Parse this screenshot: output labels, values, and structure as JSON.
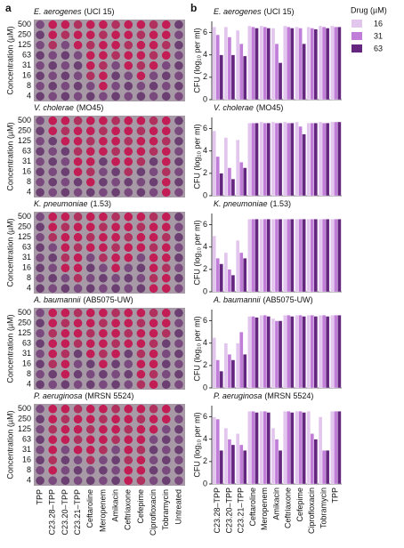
{
  "panel_a": {
    "label": "a",
    "y_label": "Concentration (µM)",
    "concentrations": [
      500,
      250,
      125,
      63,
      31,
      16,
      8,
      4
    ],
    "columns": [
      "TPP",
      "C23.28–TPP",
      "C23.20–TPP",
      "C23.21–TPP",
      "Ceftaroline",
      "Meropenem",
      "Amikacin",
      "Ceftriaxone",
      "Cefepime",
      "Ciprofloxacin",
      "Tobramycin",
      "Untreated"
    ]
  },
  "panel_b": {
    "label": "b",
    "legend_title": "Drug (µM)"
  },
  "chart_data": [
    {
      "type": "bar",
      "organism": "E. aerogenes",
      "strain": "(UCI 15)",
      "y_label": "CFU (log₁₀ per ml)",
      "ylim": [
        0,
        7
      ],
      "yticks": [
        0,
        2,
        4,
        6
      ],
      "series": [
        {
          "name": "16",
          "color": "#e2c6ee",
          "values": [
            6.5,
            6.5,
            6.2,
            6.6,
            6.6,
            6.4,
            6.6,
            6.5,
            6.5,
            6.6,
            6.6
          ]
        },
        {
          "name": "31",
          "color": "#c07ed8",
          "values": [
            5.8,
            5.6,
            5.0,
            6.5,
            6.5,
            5.0,
            6.5,
            6.4,
            6.4,
            6.5,
            6.5
          ]
        },
        {
          "name": "63",
          "color": "#64267f",
          "values": [
            4.0,
            4.0,
            3.9,
            6.4,
            6.4,
            3.3,
            6.4,
            5.0,
            6.3,
            6.4,
            6.5
          ]
        }
      ]
    },
    {
      "type": "bar",
      "organism": "V. cholerae",
      "strain": "(MO45)",
      "y_label": "CFU (log₁₀ per ml)",
      "ylim": [
        0,
        7
      ],
      "yticks": [
        0,
        2,
        4,
        6
      ],
      "series": [
        {
          "name": "16",
          "color": "#e2c6ee",
          "values": [
            5.8,
            5.2,
            5.0,
            6.5,
            6.6,
            6.6,
            6.6,
            6.6,
            6.5,
            6.6,
            6.6
          ]
        },
        {
          "name": "31",
          "color": "#c07ed8",
          "values": [
            3.5,
            2.5,
            3.0,
            6.5,
            6.5,
            6.5,
            6.5,
            6.2,
            6.5,
            6.5,
            6.6
          ]
        },
        {
          "name": "63",
          "color": "#64267f",
          "values": [
            2.0,
            1.5,
            2.5,
            6.5,
            6.5,
            6.5,
            6.5,
            5.5,
            6.5,
            6.5,
            6.6
          ]
        }
      ]
    },
    {
      "type": "bar",
      "organism": "K. pneumoniae",
      "strain": "(1.53)",
      "y_label": "CFU (log₁₀ per ml)",
      "ylim": [
        0,
        7
      ],
      "yticks": [
        0,
        2,
        4,
        6
      ],
      "series": [
        {
          "name": "16",
          "color": "#e2c6ee",
          "values": [
            5.0,
            3.5,
            4.6,
            6.5,
            6.5,
            6.5,
            6.5,
            6.5,
            6.5,
            6.5,
            6.5
          ]
        },
        {
          "name": "31",
          "color": "#c07ed8",
          "values": [
            3.0,
            2.0,
            3.5,
            6.5,
            6.5,
            6.5,
            6.5,
            6.5,
            6.5,
            6.5,
            6.5
          ]
        },
        {
          "name": "63",
          "color": "#64267f",
          "values": [
            2.5,
            1.5,
            3.0,
            6.5,
            6.5,
            6.5,
            6.5,
            6.5,
            6.5,
            6.5,
            6.5
          ]
        }
      ]
    },
    {
      "type": "bar",
      "organism": "A. baumannii",
      "strain": "(AB5075-UW)",
      "y_label": "CFU (log₁₀ per ml)",
      "ylim": [
        0,
        7
      ],
      "yticks": [
        0,
        2,
        4,
        6
      ],
      "series": [
        {
          "name": "16",
          "color": "#e2c6ee",
          "values": [
            4.5,
            4.0,
            4.0,
            6.4,
            6.5,
            6.2,
            6.5,
            6.5,
            6.5,
            6.5,
            6.5
          ]
        },
        {
          "name": "31",
          "color": "#c07ed8",
          "values": [
            2.5,
            3.0,
            5.0,
            6.4,
            6.5,
            6.0,
            6.5,
            6.5,
            6.5,
            6.5,
            6.5
          ]
        },
        {
          "name": "63",
          "color": "#64267f",
          "values": [
            1.5,
            2.5,
            3.0,
            6.3,
            6.4,
            6.0,
            6.4,
            6.4,
            6.4,
            6.4,
            6.5
          ]
        }
      ]
    },
    {
      "type": "bar",
      "organism": "P. aeruginosa",
      "strain": "(MRSN 5524)",
      "y_label": "CFU (log₁₀ per ml)",
      "ylim": [
        0,
        7
      ],
      "yticks": [
        0,
        2,
        4,
        6
      ],
      "categories": [
        "C23.28–TPP",
        "C23.20–TPP",
        "C23.21–TPP",
        "Ceftaroline",
        "Meropenem",
        "Amikacin",
        "Ceftriaxone",
        "Cefepime",
        "Ciprofloxacin",
        "Tobramycin",
        "TPP"
      ],
      "series": [
        {
          "name": "16",
          "color": "#e2c6ee",
          "values": [
            6.0,
            5.0,
            4.5,
            6.5,
            6.5,
            5.0,
            6.5,
            6.5,
            6.5,
            6.0,
            6.5
          ]
        },
        {
          "name": "31",
          "color": "#c07ed8",
          "values": [
            5.8,
            4.0,
            3.5,
            6.5,
            6.5,
            4.0,
            6.5,
            6.5,
            4.5,
            3.0,
            6.5
          ]
        },
        {
          "name": "63",
          "color": "#64267f",
          "values": [
            3.0,
            3.5,
            3.0,
            6.4,
            6.4,
            3.0,
            6.4,
            6.4,
            4.0,
            3.0,
            6.5
          ]
        }
      ]
    }
  ]
}
